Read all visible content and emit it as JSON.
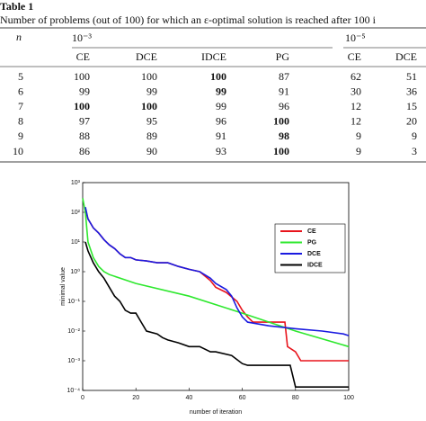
{
  "table": {
    "label": "Table 1",
    "caption": "Number of problems (out of 100) for which an ε-optimal solution is reached after 100 i",
    "row_header": "n",
    "groups": [
      "10⁻³",
      "10⁻⁵"
    ],
    "columns": [
      "CE",
      "DCE",
      "IDCE",
      "PG",
      "CE",
      "DCE"
    ],
    "rows": [
      [
        5,
        100,
        100,
        100,
        87,
        62,
        51
      ],
      [
        6,
        99,
        99,
        99,
        91,
        30,
        36
      ],
      [
        7,
        100,
        100,
        99,
        96,
        12,
        15
      ],
      [
        8,
        97,
        95,
        96,
        100,
        12,
        20
      ],
      [
        9,
        88,
        89,
        91,
        98,
        9,
        9
      ],
      [
        10,
        86,
        90,
        93,
        100,
        9,
        3
      ]
    ],
    "bold": [
      [
        0,
        3
      ],
      [
        1,
        3
      ],
      [
        2,
        1
      ],
      [
        2,
        2
      ],
      [
        3,
        4
      ],
      [
        4,
        4
      ],
      [
        5,
        4
      ]
    ]
  },
  "chart_data": {
    "type": "line",
    "xlabel": "number of iteration",
    "ylabel": "minimal value",
    "log_y": true,
    "legend": "upper right",
    "xlim": [
      0,
      100
    ],
    "xticks": [
      0,
      20,
      40,
      60,
      80,
      100
    ],
    "ylim": [
      0.0001,
      1000
    ],
    "yticks": [
      {
        "value": 0.0001,
        "label": "10⁻⁴"
      },
      {
        "value": 0.001,
        "label": "10⁻³"
      },
      {
        "value": 0.01,
        "label": "10⁻²"
      },
      {
        "value": 0.1,
        "label": "10⁻¹"
      },
      {
        "value": 1,
        "label": "10⁰"
      },
      {
        "value": 10,
        "label": "10¹"
      },
      {
        "value": 100,
        "label": "10²"
      },
      {
        "value": 1000,
        "label": "10³"
      }
    ],
    "series": [
      {
        "name": "CE",
        "color": "#e8141c",
        "x": [
          1,
          2,
          4,
          6,
          8,
          10,
          12,
          14,
          16,
          18,
          20,
          24,
          28,
          32,
          36,
          40,
          44,
          48,
          50,
          54,
          58,
          60,
          62,
          64,
          76,
          77,
          80,
          82,
          100
        ],
        "values": [
          120,
          60,
          30,
          20,
          12,
          8,
          6,
          4,
          3,
          3,
          2.5,
          2.3,
          2,
          2,
          1.5,
          1.2,
          1,
          0.5,
          0.3,
          0.2,
          0.1,
          0.05,
          0.03,
          0.02,
          0.02,
          0.003,
          0.002,
          0.001,
          0.001
        ]
      },
      {
        "name": "PG",
        "color": "#2ee82e",
        "x": [
          0,
          1,
          2,
          4,
          6,
          8,
          10,
          20,
          40,
          60,
          80,
          100
        ],
        "values": [
          300,
          100,
          10,
          3,
          1.5,
          1,
          0.8,
          0.4,
          0.15,
          0.04,
          0.01,
          0.003
        ]
      },
      {
        "name": "DCE",
        "color": "#1a1ae0",
        "x": [
          1,
          2,
          4,
          6,
          8,
          10,
          12,
          14,
          16,
          18,
          20,
          24,
          28,
          32,
          36,
          40,
          44,
          48,
          50,
          54,
          56,
          58,
          60,
          62,
          70,
          80,
          90,
          98,
          100
        ],
        "values": [
          150,
          60,
          30,
          20,
          12,
          8,
          6,
          4,
          3,
          3,
          2.5,
          2.3,
          2,
          2,
          1.5,
          1.2,
          1,
          0.6,
          0.4,
          0.25,
          0.15,
          0.06,
          0.03,
          0.02,
          0.015,
          0.012,
          0.01,
          0.008,
          0.007
        ]
      },
      {
        "name": "IDCE",
        "color": "#000000",
        "x": [
          1,
          2,
          4,
          6,
          8,
          10,
          12,
          14,
          16,
          18,
          20,
          22,
          24,
          28,
          30,
          32,
          36,
          40,
          44,
          48,
          50,
          56,
          60,
          62,
          78,
          80,
          100
        ],
        "values": [
          10,
          5,
          2,
          1,
          0.6,
          0.3,
          0.15,
          0.1,
          0.05,
          0.04,
          0.04,
          0.02,
          0.01,
          0.008,
          0.006,
          0.005,
          0.004,
          0.003,
          0.003,
          0.002,
          0.002,
          0.0015,
          0.0008,
          0.0007,
          0.0007,
          0.00013,
          0.00013
        ]
      }
    ]
  }
}
